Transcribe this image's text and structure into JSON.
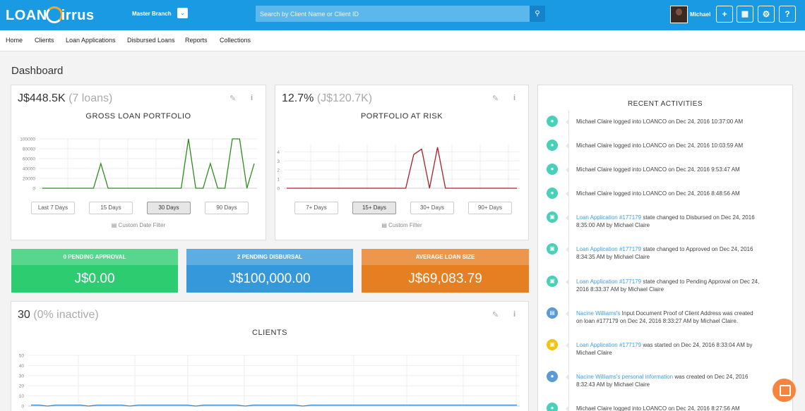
{
  "app": {
    "logo": "LOANCirrus",
    "logo_left": "LOAN",
    "logo_right": "irrus"
  },
  "header": {
    "branch": "Master Branch",
    "search_placeholder": "Search by Client Name or Client ID",
    "user": "Michael",
    "icons": [
      "plus-icon",
      "calculator-icon",
      "gear-icon",
      "help-icon"
    ]
  },
  "nav": [
    "Home",
    "Clients",
    "Loan Applications",
    "Disbursed Loans",
    "Reports",
    "Collections"
  ],
  "page_title": "Dashboard",
  "portfolio": {
    "amount": "J$448.5K",
    "count": "(7 loans)",
    "title": "GROSS LOAN PORTFOLIO",
    "ranges": [
      "Last 7 Days",
      "15 Days",
      "30 Days",
      "90 Days"
    ],
    "active": "30 Days",
    "filter": "Custom Date Filter"
  },
  "par": {
    "pct": "12.7%",
    "amount": "(J$120.7K)",
    "title": "PORTFOLIO AT RISK",
    "ranges": [
      "7+ Days",
      "15+ Days",
      "30+ Days",
      "90+ Days"
    ],
    "active": "15+ Days",
    "filter": "Custom Filter"
  },
  "stats": [
    {
      "label": "0 PENDING APPROVAL",
      "value": "J$0.00",
      "color": "#2ecc71"
    },
    {
      "label": "2 PENDING DISBURSAL",
      "value": "J$100,000.00",
      "color": "#3498db"
    },
    {
      "label": "AVERAGE LOAN SIZE",
      "value": "J$69,083.79",
      "color": "#e67e22"
    }
  ],
  "clients": {
    "count": "30",
    "inactive": "(0% inactive)",
    "title": "CLIENTS"
  },
  "activities": {
    "title": "RECENT ACTIVITIES",
    "items": [
      {
        "icon": "user-icon",
        "color": "#48d1b8",
        "pre": "",
        "link": "",
        "text": "Michael Claire logged into LOANCO on Dec 24, 2016 10:37:00 AM",
        "line2": ""
      },
      {
        "icon": "user-icon",
        "color": "#48d1b8",
        "pre": "",
        "link": "",
        "text": "Michael Claire logged into LOANCO on Dec 24, 2016 10:03:59 AM",
        "line2": ""
      },
      {
        "icon": "user-icon",
        "color": "#48d1b8",
        "pre": "",
        "link": "",
        "text": "Michael Claire logged into LOANCO on Dec 24, 2016 9:53:47 AM",
        "line2": ""
      },
      {
        "icon": "user-icon",
        "color": "#48d1b8",
        "pre": "",
        "link": "",
        "text": "Michael Claire logged into LOANCO on Dec 24, 2016 8:48:56 AM",
        "line2": ""
      },
      {
        "icon": "money-icon",
        "color": "#48d1b8",
        "pre": "",
        "link": "Loan Application #177179",
        "text": " state changed to Disbursed on Dec 24, 2016",
        "line2": "8:35:00 AM by Michael Claire"
      },
      {
        "icon": "money-icon",
        "color": "#48d1b8",
        "pre": "",
        "link": "Loan Application #177179",
        "text": " state changed to Approved on Dec 24, 2016",
        "line2": "8:34:35 AM by Michael Claire"
      },
      {
        "icon": "money-icon",
        "color": "#48d1b8",
        "pre": "",
        "link": "Loan Application #177179",
        "text": " state changed to Pending Approval on Dec 24,",
        "line2": "2016 8:33:37 AM by Michael Claire"
      },
      {
        "icon": "document-icon",
        "color": "#5b9bd5",
        "pre": "",
        "link": "Nacine Williams's",
        "text": " Input Document Proof of Client Address was created",
        "line2": "on loan #177179 on Dec 24, 2016 8:33:27 AM by Michael Claire."
      },
      {
        "icon": "money-icon",
        "color": "#f1c40f",
        "pre": "",
        "link": "Loan Application #177179",
        "text": " was started on Dec 24, 2016 8:33:04 AM by",
        "line2": "Michael Claire"
      },
      {
        "icon": "user-icon",
        "color": "#5b9bd5",
        "pre": "",
        "link": "Nacine Williams's personal information",
        "text": " was created on Dec 24, 2016",
        "line2": "8:32:43 AM by Michael Claire"
      },
      {
        "icon": "user-icon",
        "color": "#48d1b8",
        "pre": "",
        "link": "",
        "text": "Michael Claire logged into LOANCO on Dec 24, 2016 8:27:56 AM",
        "line2": ""
      }
    ]
  },
  "chart_data": [
    {
      "type": "line",
      "title": "GROSS LOAN PORTFOLIO",
      "x": [
        1,
        2,
        3,
        4,
        5,
        6,
        7,
        8,
        9,
        10,
        11,
        12,
        13,
        14,
        15,
        16,
        17,
        18,
        19,
        20,
        21,
        22,
        23,
        24,
        25,
        26,
        27,
        28,
        29,
        30
      ],
      "series": [
        {
          "values": [
            0,
            0,
            0,
            0,
            0,
            0,
            0,
            0,
            50000,
            0,
            0,
            0,
            0,
            0,
            0,
            0,
            0,
            0,
            0,
            0,
            100000,
            0,
            0,
            50000,
            0,
            0,
            100000,
            100000,
            0,
            50000
          ],
          "color": "#2e8b1f"
        }
      ],
      "yticks": [
        0,
        20000,
        40000,
        60000,
        80000,
        100000
      ],
      "ylim": [
        0,
        100000
      ]
    },
    {
      "type": "line",
      "title": "PORTFOLIO AT RISK",
      "x": [
        1,
        2,
        3,
        4,
        5,
        6,
        7,
        8,
        9,
        10,
        11,
        12,
        13,
        14,
        15,
        16,
        17,
        18,
        19,
        20,
        21,
        22,
        23,
        24,
        25,
        26,
        27,
        28,
        29,
        30
      ],
      "series": [
        {
          "values": [
            0,
            0,
            0,
            0,
            0,
            0,
            0,
            0,
            0,
            0,
            0,
            0,
            0,
            0,
            0,
            0,
            3.7,
            4.3,
            0,
            4.5,
            0,
            0,
            0,
            0,
            0,
            0,
            0,
            0,
            0,
            0
          ],
          "color": "#a8202a"
        }
      ],
      "yticks": [
        0,
        1,
        2,
        3,
        4
      ],
      "ylim": [
        0,
        4.8
      ]
    },
    {
      "type": "line",
      "title": "CLIENTS",
      "series": [
        {
          "values": [
            1,
            1,
            0,
            1,
            1,
            1,
            1,
            0,
            1,
            1,
            1,
            1,
            0,
            1,
            1,
            1,
            1,
            1,
            1,
            1,
            0,
            1,
            1,
            1,
            1,
            1,
            0,
            1,
            1,
            1,
            1,
            1,
            1,
            0,
            1,
            1,
            1,
            1,
            1,
            1,
            1,
            1,
            1,
            1,
            1,
            1,
            1,
            1,
            1,
            1,
            1,
            1,
            1,
            1,
            1,
            1,
            1,
            1,
            1,
            1
          ],
          "color": "#3a86c8"
        }
      ],
      "yticks": [
        0,
        10,
        20,
        30,
        40,
        50
      ],
      "ylim": [
        0,
        50
      ]
    }
  ]
}
